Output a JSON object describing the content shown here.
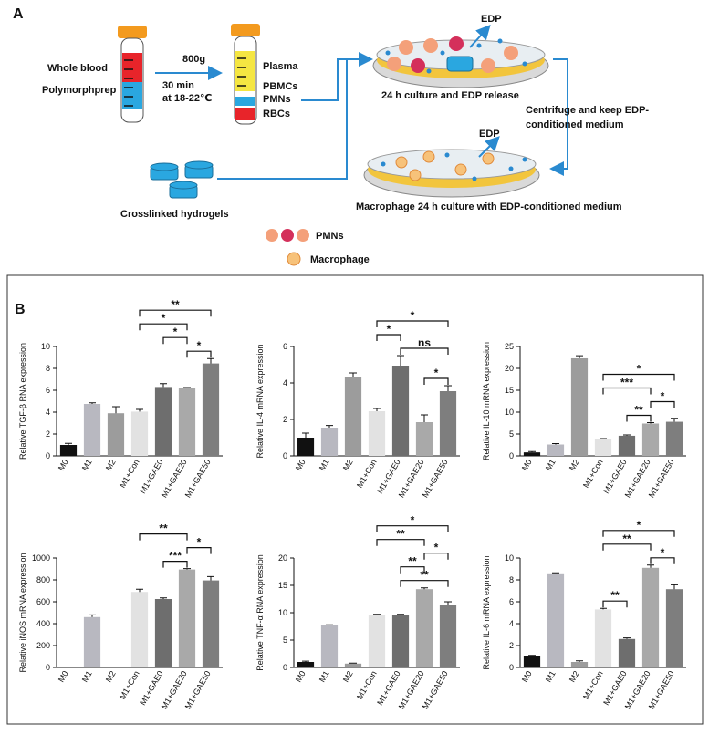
{
  "panel_a": {
    "label": "A",
    "tube1": {
      "top": "Whole blood",
      "bottom": "Polymorphprep"
    },
    "spin": [
      "800g",
      "30 min",
      "at 18-22℃"
    ],
    "layers": [
      "Plasma",
      "PBMCs",
      "PMNs",
      "RBCs"
    ],
    "dish1": {
      "edp": "EDP",
      "caption": "24 h culture and EDP release"
    },
    "centrifuge": [
      "Centrifuge and keep EDP-",
      "conditioned medium"
    ],
    "dish2": {
      "edp": "EDP",
      "caption": "Macrophage 24 h culture with EDP-conditioned medium"
    },
    "hydrogels": "Crosslinked hydrogels",
    "legend": [
      "PMNs",
      "Macrophage"
    ]
  },
  "panel_b": {
    "label": "B"
  },
  "chart_data": [
    {
      "type": "bar",
      "ylabel": "Relative TGF-β RNA expression",
      "categories": [
        "M0",
        "M1",
        "M2",
        "M1+Con",
        "M1+GAE0",
        "M1+GAE20",
        "M1+GAE50"
      ],
      "values": [
        1.0,
        4.75,
        3.9,
        4.05,
        6.3,
        6.2,
        8.45
      ],
      "errors": [
        0.15,
        0.1,
        0.6,
        0.2,
        0.3,
        0.05,
        0.45
      ],
      "colors": [
        "#111111",
        "#b8b8c0",
        "#9c9c9c",
        "#e2e2e2",
        "#6e6e6e",
        "#a9a9a9",
        "#7e7e7e"
      ],
      "ylim": [
        0,
        10
      ],
      "yticks": [
        0,
        2,
        4,
        6,
        8,
        10
      ],
      "annotations": [
        {
          "from": "M1+Con",
          "to": "M1+GAE50",
          "label": "**"
        },
        {
          "from": "M1+Con",
          "to": "M1+GAE20",
          "label": "*"
        },
        {
          "from": "M1+GAE0",
          "to": "M1+GAE20",
          "label": "*"
        },
        {
          "from": "M1+GAE20",
          "to": "M1+GAE50",
          "label": "*"
        }
      ]
    },
    {
      "type": "bar",
      "ylabel": "Relative IL-4 mRNA expression",
      "categories": [
        "M0",
        "M1",
        "M2",
        "M1+Con",
        "M1+GAE0",
        "M1+GAE20",
        "M1+GAE50"
      ],
      "values": [
        1.0,
        1.55,
        4.35,
        2.45,
        4.95,
        1.85,
        3.55
      ],
      "errors": [
        0.25,
        0.12,
        0.2,
        0.15,
        0.55,
        0.4,
        0.3
      ],
      "colors": [
        "#111111",
        "#b8b8c0",
        "#9c9c9c",
        "#e2e2e2",
        "#6e6e6e",
        "#a9a9a9",
        "#7e7e7e"
      ],
      "ylim": [
        0,
        6
      ],
      "yticks": [
        0,
        2,
        4,
        6
      ],
      "annotations": [
        {
          "from": "M1+Con",
          "to": "M1+GAE50",
          "label": "*"
        },
        {
          "from": "M1+Con",
          "to": "M1+GAE0",
          "label": "*"
        },
        {
          "from": "M1+GAE0",
          "to": "M1+GAE50",
          "label": "ns"
        },
        {
          "from": "M1+GAE20",
          "to": "M1+GAE50",
          "label": "*"
        }
      ]
    },
    {
      "type": "bar",
      "ylabel": "Relative  IL-10 mRNA expression",
      "categories": [
        "M0",
        "M1",
        "M2",
        "M1+Con",
        "M1+GAE0",
        "M1+GAE20",
        "M1+GAE50"
      ],
      "values": [
        0.8,
        2.6,
        22.3,
        3.8,
        4.6,
        7.4,
        7.8
      ],
      "errors": [
        0.2,
        0.2,
        0.6,
        0.15,
        0.2,
        0.2,
        0.8
      ],
      "colors": [
        "#111111",
        "#b8b8c0",
        "#9c9c9c",
        "#e2e2e2",
        "#6e6e6e",
        "#a9a9a9",
        "#7e7e7e"
      ],
      "ylim": [
        0,
        25
      ],
      "yticks": [
        0,
        5,
        10,
        15,
        20,
        25
      ],
      "annotations": [
        {
          "from": "M1+Con",
          "to": "M1+GAE50",
          "label": "*"
        },
        {
          "from": "M1+Con",
          "to": "M1+GAE20",
          "label": "***"
        },
        {
          "from": "M1+GAE20",
          "to": "M1+GAE50",
          "label": "*"
        },
        {
          "from": "M1+GAE0",
          "to": "M1+GAE20",
          "label": "**"
        }
      ]
    },
    {
      "type": "bar",
      "ylabel": "Relative iNOS mRNA expression",
      "categories": [
        "M0",
        "M1",
        "M2",
        "M1+Con",
        "M1+GAE0",
        "M1+GAE20",
        "M1+GAE50"
      ],
      "values": [
        0,
        460,
        0,
        690,
        625,
        895,
        795
      ],
      "errors": [
        0,
        20,
        0,
        25,
        10,
        8,
        35
      ],
      "colors": [
        "#111111",
        "#b8b8c0",
        "#9c9c9c",
        "#e2e2e2",
        "#6e6e6e",
        "#a9a9a9",
        "#7e7e7e"
      ],
      "ylim": [
        0,
        1000
      ],
      "yticks": [
        0,
        200,
        400,
        600,
        800,
        1000
      ],
      "annotations": [
        {
          "from": "M1+Con",
          "to": "M1+GAE20",
          "label": "**"
        },
        {
          "from": "M1+GAE20",
          "to": "M1+GAE50",
          "label": "*"
        },
        {
          "from": "M1+GAE0",
          "to": "M1+GAE20",
          "label": "***"
        }
      ]
    },
    {
      "type": "bar",
      "ylabel": "Relative TNF-α RNA expression",
      "categories": [
        "M0",
        "M1",
        "M2",
        "M1+Con",
        "M1+GAE0",
        "M1+GAE20",
        "M1+GAE50"
      ],
      "values": [
        1.0,
        7.7,
        0.7,
        9.5,
        9.6,
        14.3,
        11.5
      ],
      "errors": [
        0.15,
        0.1,
        0.1,
        0.2,
        0.1,
        0.25,
        0.5
      ],
      "colors": [
        "#111111",
        "#b8b8c0",
        "#9c9c9c",
        "#e2e2e2",
        "#6e6e6e",
        "#a9a9a9",
        "#7e7e7e"
      ],
      "ylim": [
        0,
        20
      ],
      "yticks": [
        0,
        5,
        10,
        15,
        20
      ],
      "annotations": [
        {
          "from": "M1+Con",
          "to": "M1+GAE50",
          "label": "*"
        },
        {
          "from": "M1+Con",
          "to": "M1+GAE20",
          "label": "**"
        },
        {
          "from": "M1+GAE20",
          "to": "M1+GAE50",
          "label": "*"
        },
        {
          "from": "M1+GAE0",
          "to": "M1+GAE20",
          "label": "**"
        },
        {
          "from": "M1+GAE0",
          "to": "M1+GAE50",
          "label": "**"
        }
      ]
    },
    {
      "type": "bar",
      "ylabel": "Relative IL-6 mRNA expression",
      "categories": [
        "M0",
        "M1",
        "M2",
        "M1+Con",
        "M1+GAE0",
        "M1+GAE20",
        "M1+GAE50"
      ],
      "values": [
        1.0,
        8.6,
        0.5,
        5.3,
        2.6,
        9.1,
        7.15
      ],
      "errors": [
        0.1,
        0.05,
        0.1,
        0.1,
        0.1,
        0.25,
        0.4
      ],
      "colors": [
        "#111111",
        "#b8b8c0",
        "#9c9c9c",
        "#e2e2e2",
        "#6e6e6e",
        "#a9a9a9",
        "#7e7e7e"
      ],
      "ylim": [
        0,
        10
      ],
      "yticks": [
        0,
        2,
        4,
        6,
        8,
        10
      ],
      "annotations": [
        {
          "from": "M1+Con",
          "to": "M1+GAE50",
          "label": "*"
        },
        {
          "from": "M1+Con",
          "to": "M1+GAE20",
          "label": "**"
        },
        {
          "from": "M1+GAE20",
          "to": "M1+GAE50",
          "label": "*"
        },
        {
          "from": "M1+Con",
          "to": "M1+GAE0",
          "label": "**"
        }
      ]
    }
  ]
}
